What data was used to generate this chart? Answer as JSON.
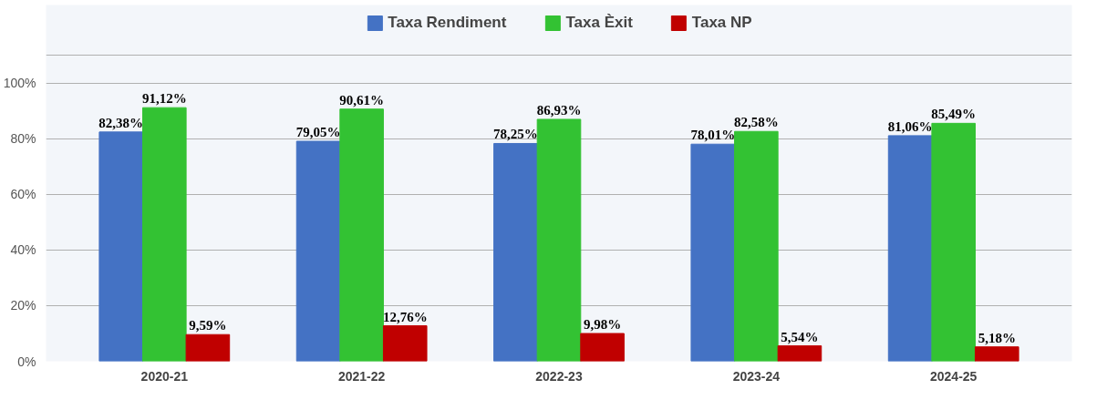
{
  "chart_data": {
    "type": "bar",
    "categories": [
      "2020-21",
      "2021-22",
      "2022-23",
      "2023-24",
      "2024-25"
    ],
    "series": [
      {
        "name": "Taxa Rendiment",
        "color": "#4472c4",
        "values": [
          82.38,
          79.05,
          78.25,
          78.01,
          81.06
        ],
        "value_labels": [
          "82,38%",
          "79,05%",
          "78,25%",
          "78,01%",
          "81,06%"
        ]
      },
      {
        "name": "Taxa Èxit",
        "color": "#33c233",
        "values": [
          91.12,
          90.61,
          86.93,
          82.58,
          85.49
        ],
        "value_labels": [
          "91,12%",
          "90,61%",
          "86,93%",
          "82,58%",
          "85,49%"
        ]
      },
      {
        "name": "Taxa NP",
        "color": "#c00000",
        "values": [
          9.59,
          12.76,
          9.98,
          5.54,
          5.18
        ],
        "value_labels": [
          "9,59%",
          "12,76%",
          "9,98%",
          "5,54%",
          "5,18%"
        ]
      }
    ],
    "ylim": [
      0,
      128
    ],
    "yticks": [
      {
        "value": 0,
        "label": "0%"
      },
      {
        "value": 20,
        "label": "20%"
      },
      {
        "value": 40,
        "label": "40%"
      },
      {
        "value": 60,
        "label": "60%"
      },
      {
        "value": 80,
        "label": "80%"
      },
      {
        "value": 100,
        "label": "100%"
      },
      {
        "value": 110,
        "label": null
      }
    ],
    "grid": "y",
    "legend": "top center"
  }
}
